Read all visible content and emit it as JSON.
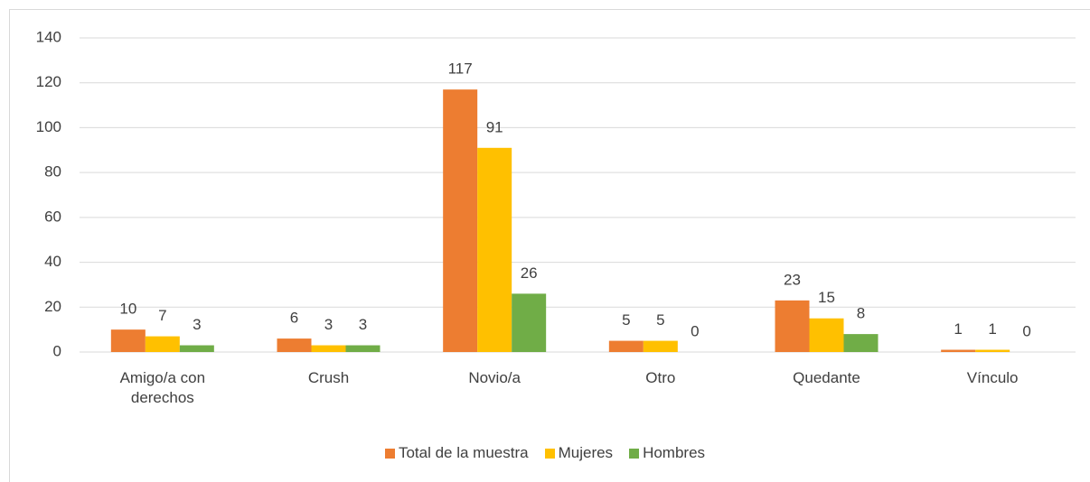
{
  "chart_data": {
    "type": "bar",
    "categories": [
      "Amigo/a con derechos",
      "Crush",
      "Novio/a",
      "Otro",
      "Quedante",
      "Vínculo"
    ],
    "series": [
      {
        "name": "Total de la muestra",
        "color": "#ed7d31",
        "values": [
          10,
          6,
          117,
          5,
          23,
          1
        ]
      },
      {
        "name": "Mujeres",
        "color": "#ffc000",
        "values": [
          7,
          3,
          91,
          5,
          15,
          1
        ]
      },
      {
        "name": "Hombres",
        "color": "#70ad47",
        "values": [
          3,
          3,
          26,
          0,
          8,
          0
        ]
      }
    ],
    "ylim": [
      0,
      140
    ],
    "yticks": [
      0,
      20,
      40,
      60,
      80,
      100,
      120,
      140
    ],
    "grid": true,
    "legend": "bottom"
  }
}
